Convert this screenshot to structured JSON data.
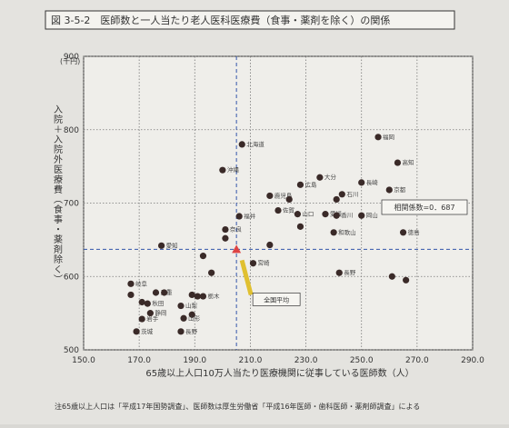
{
  "chart_data": {
    "type": "scatter",
    "title": "図 3-5-2　医師数と一人当たり老人医科医療費（食事・薬剤を除く）の関係",
    "y_unit": "(千円)",
    "y_label": "入院＋入院外医療費（食事・薬剤除く）",
    "x_label": "65歳以上人口10万人当たり医療機関に従事している医師数（人）",
    "annotation": "相関係数=0．687",
    "average_label": "全国平均",
    "note": "注65歳以上人口は「平成17年国勢調査」、医師数は厚生労働省「平成16年医師・歯科医師・薬剤師調査」による",
    "xlim": [
      150,
      290
    ],
    "xticks": [
      {
        "value": 150,
        "label": "150.0"
      },
      {
        "value": 170,
        "label": "170.0"
      },
      {
        "value": 190,
        "label": "190.0"
      },
      {
        "value": 210,
        "label": "210.0"
      },
      {
        "value": 230,
        "label": "230.0"
      },
      {
        "value": 250,
        "label": "250.0"
      },
      {
        "value": 270,
        "label": "270.0"
      },
      {
        "value": 290,
        "label": "290.0"
      }
    ],
    "ylim": [
      500,
      900
    ],
    "yticks": [
      500,
      600,
      700,
      800,
      900
    ],
    "grid": true,
    "color": "#3a2a28",
    "average": {
      "x": 205,
      "y": 637
    },
    "x": [
      207,
      200,
      256,
      263,
      250,
      235,
      228,
      260,
      243,
      217,
      224,
      241,
      220,
      227,
      237,
      241,
      250,
      206,
      228,
      240,
      265,
      201,
      201,
      217,
      178,
      211,
      193,
      196,
      242,
      261,
      266,
      167,
      176,
      167,
      179,
      189,
      191,
      193,
      185,
      173,
      171,
      174,
      189,
      171,
      169,
      185,
      186
    ],
    "values": [
      780,
      745,
      790,
      755,
      728,
      735,
      725,
      718,
      712,
      710,
      705,
      705,
      690,
      685,
      685,
      683,
      683,
      682,
      668,
      660,
      660,
      664,
      652,
      643,
      642,
      618,
      628,
      605,
      605,
      600,
      595,
      590,
      578,
      575,
      578,
      575,
      573,
      573,
      560,
      563,
      565,
      550,
      548,
      542,
      525,
      525,
      543
    ],
    "point_labels": [
      "北海道",
      "沖縄",
      "福岡",
      "高知",
      "長崎",
      "大分",
      "広島",
      "京都",
      "石川",
      "鹿児島",
      null,
      null,
      "佐賀",
      "山口",
      "愛媛",
      "香川",
      "岡山",
      "福井",
      null,
      "和歌山",
      "徳島",
      "奈良",
      null,
      null,
      "愛知",
      "宮崎",
      null,
      null,
      "長野",
      null,
      null,
      "岐阜",
      "三重",
      null,
      null,
      null,
      null,
      "栃木",
      "山梨",
      "秋田",
      null,
      "静岡",
      null,
      "岩手",
      "茨城",
      "長野",
      "山形"
    ]
  }
}
